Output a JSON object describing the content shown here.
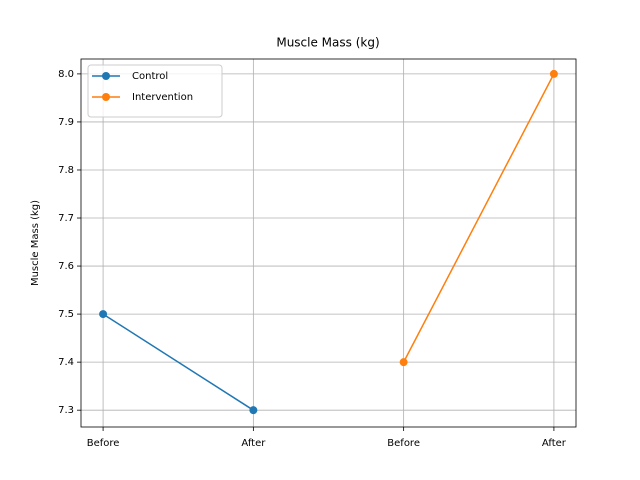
{
  "chart_data": {
    "type": "line",
    "title": "Muscle Mass (kg)",
    "y_label": "Muscle Mass (kg)",
    "categories": [
      "Before",
      "After",
      "Before",
      "After"
    ],
    "series": [
      {
        "name": "Control",
        "color": "#1f77b4",
        "values": [
          7.5,
          7.3,
          null,
          null
        ]
      },
      {
        "name": "Intervention",
        "color": "#ff7f0e",
        "values": [
          null,
          null,
          7.4,
          8.0
        ]
      }
    ],
    "ylim": [
      7.265,
      8.031
    ],
    "yticks": [
      7.3,
      7.4,
      7.5,
      7.6,
      7.7,
      7.8,
      7.9,
      {
        "value": 8,
        "label": "8.0"
      }
    ],
    "grid": true,
    "legend": "upper-left"
  }
}
